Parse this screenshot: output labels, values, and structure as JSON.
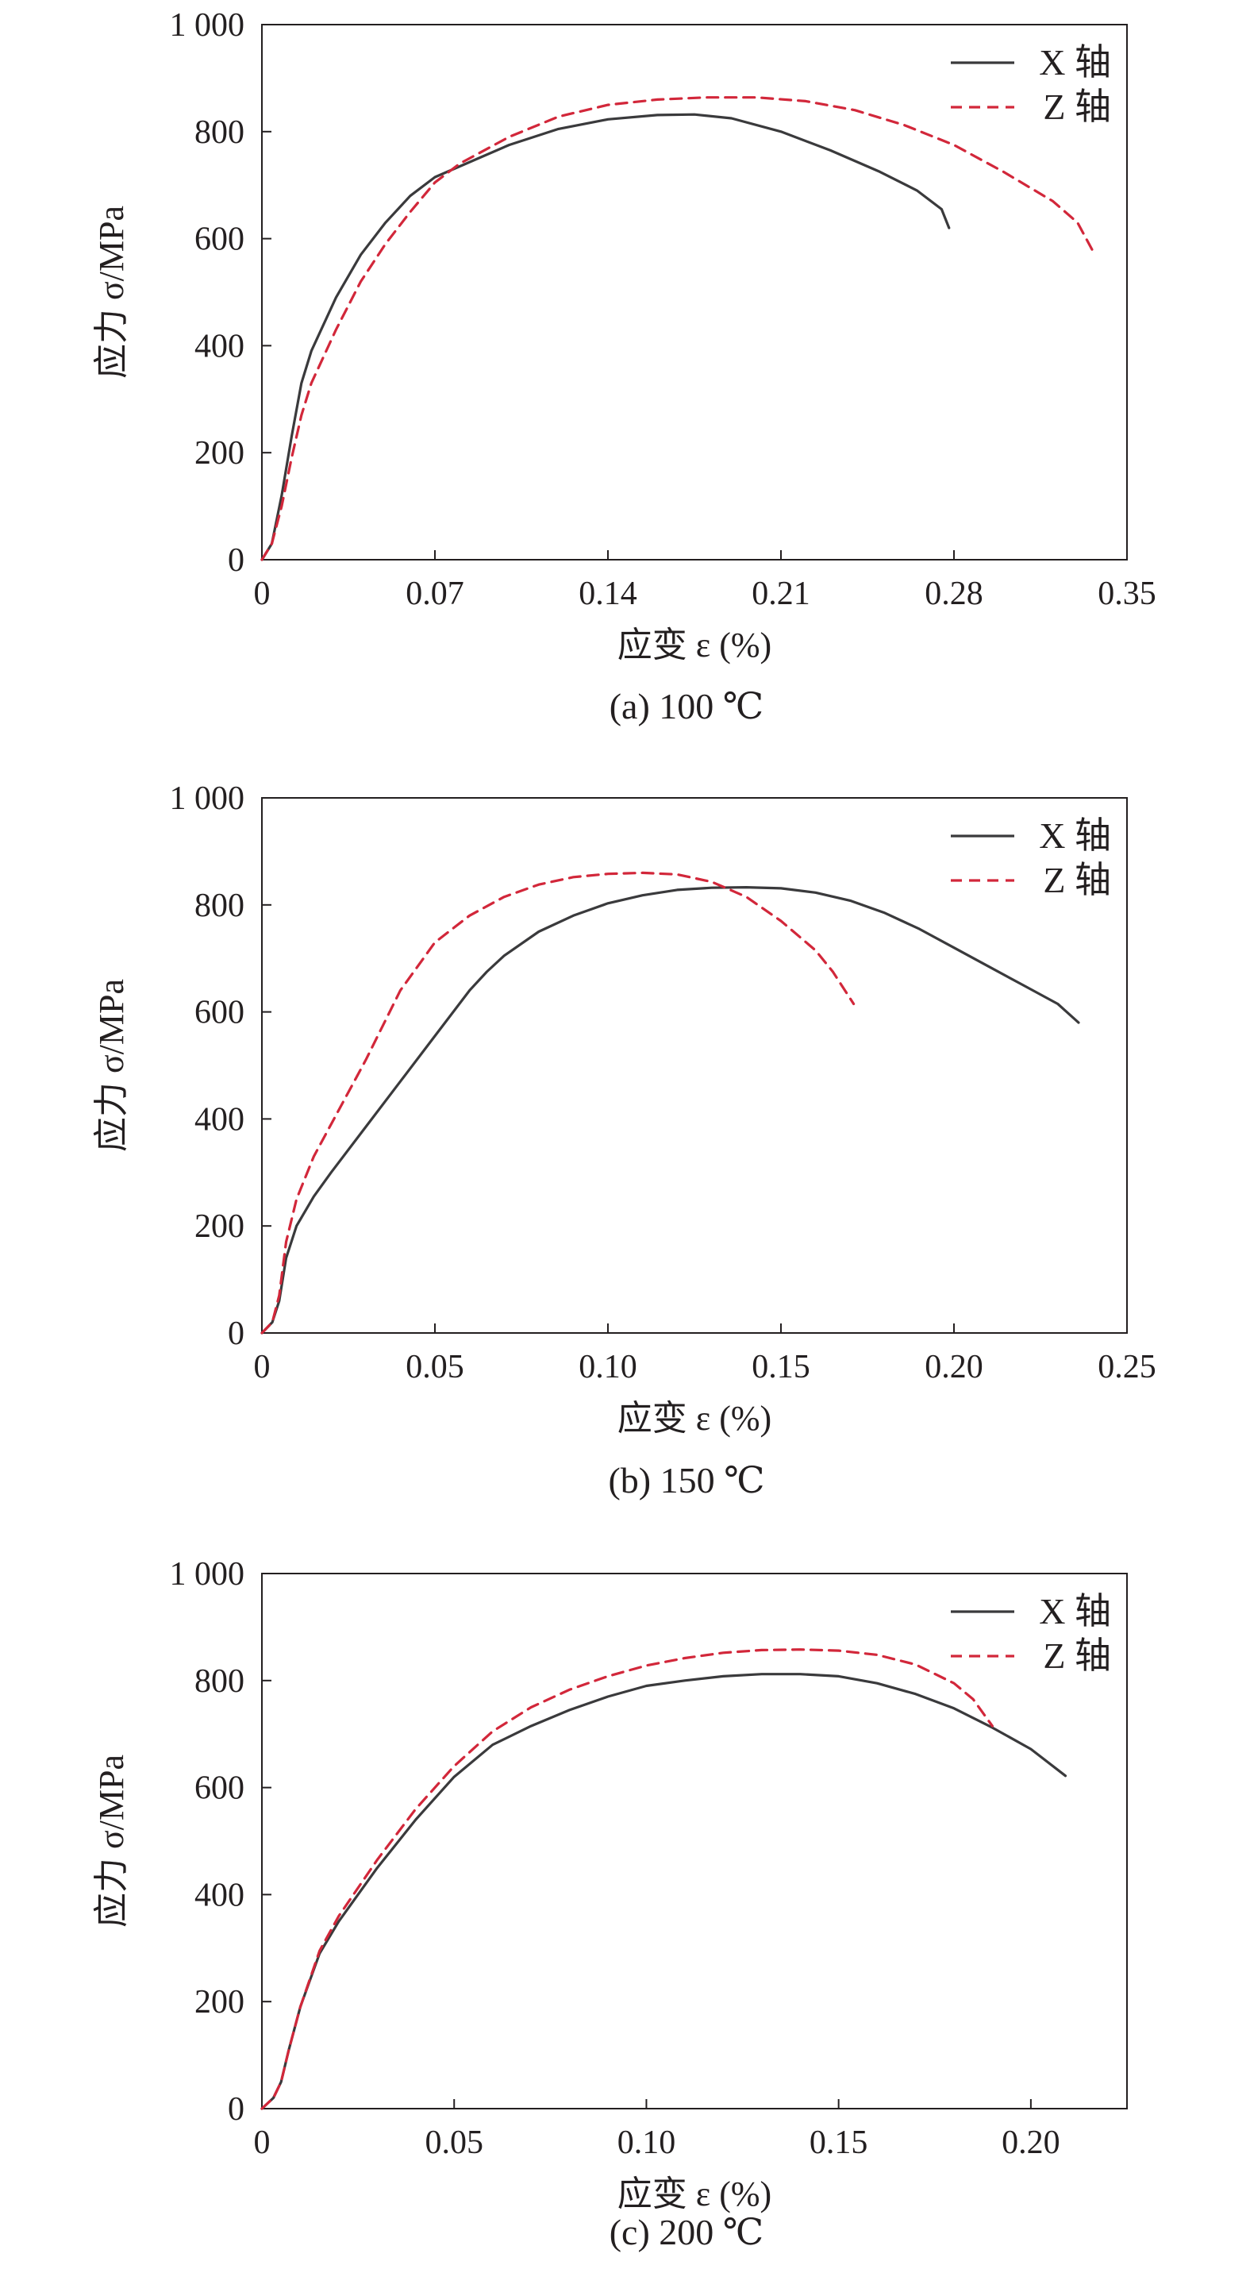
{
  "figure": {
    "panels_label": "stress-strain curves"
  },
  "colors": {
    "x_axis_series": "#3a3a3c",
    "z_axis_series": "#d2273a",
    "frame": "#231f20"
  },
  "chart_data": [
    {
      "type": "line",
      "caption": "(a) 100 ℃",
      "xlabel": "应变 ε (%)",
      "ylabel": "应力 σ/MPa",
      "xlim": [
        0,
        0.35
      ],
      "ylim": [
        0,
        1000
      ],
      "xticks": [
        "0",
        "0.07",
        "0.14",
        "0.21",
        "0.28",
        "0.35"
      ],
      "xtick_values": [
        0,
        0.07,
        0.14,
        0.21,
        0.28,
        0.35
      ],
      "yticks": [
        "0",
        "200",
        "400",
        "600",
        "800",
        "1 000"
      ],
      "ytick_values": [
        0,
        200,
        400,
        600,
        800,
        1000
      ],
      "legend": "top-right",
      "grid": false,
      "series": [
        {
          "name": "X 轴",
          "style": "solid",
          "points": [
            [
              0,
              0
            ],
            [
              0.004,
              30
            ],
            [
              0.008,
              120
            ],
            [
              0.012,
              230
            ],
            [
              0.016,
              330
            ],
            [
              0.02,
              390
            ],
            [
              0.03,
              490
            ],
            [
              0.04,
              570
            ],
            [
              0.05,
              630
            ],
            [
              0.06,
              680
            ],
            [
              0.07,
              715
            ],
            [
              0.085,
              745
            ],
            [
              0.1,
              775
            ],
            [
              0.12,
              805
            ],
            [
              0.14,
              823
            ],
            [
              0.16,
              831
            ],
            [
              0.175,
              832
            ],
            [
              0.19,
              825
            ],
            [
              0.21,
              800
            ],
            [
              0.23,
              765
            ],
            [
              0.25,
              725
            ],
            [
              0.265,
              690
            ],
            [
              0.275,
              655
            ],
            [
              0.278,
              620
            ]
          ]
        },
        {
          "name": "Z 轴",
          "style": "dashed",
          "points": [
            [
              0,
              0
            ],
            [
              0.004,
              30
            ],
            [
              0.008,
              100
            ],
            [
              0.012,
              190
            ],
            [
              0.016,
              270
            ],
            [
              0.02,
              330
            ],
            [
              0.03,
              430
            ],
            [
              0.04,
              520
            ],
            [
              0.05,
              590
            ],
            [
              0.06,
              650
            ],
            [
              0.07,
              705
            ],
            [
              0.08,
              740
            ],
            [
              0.1,
              790
            ],
            [
              0.12,
              828
            ],
            [
              0.14,
              850
            ],
            [
              0.16,
              860
            ],
            [
              0.18,
              864
            ],
            [
              0.2,
              864
            ],
            [
              0.22,
              857
            ],
            [
              0.24,
              840
            ],
            [
              0.26,
              812
            ],
            [
              0.28,
              775
            ],
            [
              0.3,
              725
            ],
            [
              0.32,
              670
            ],
            [
              0.33,
              630
            ],
            [
              0.337,
              570
            ]
          ]
        }
      ]
    },
    {
      "type": "line",
      "caption": "(b) 150 ℃",
      "xlabel": "应变 ε (%)",
      "ylabel": "应力 σ/MPa",
      "xlim": [
        0,
        0.25
      ],
      "ylim": [
        0,
        1000
      ],
      "xticks": [
        "0",
        "0.05",
        "0.10",
        "0.15",
        "0.20",
        "0.25"
      ],
      "xtick_values": [
        0,
        0.05,
        0.1,
        0.15,
        0.2,
        0.25
      ],
      "yticks": [
        "0",
        "200",
        "400",
        "600",
        "800",
        "1 000"
      ],
      "ytick_values": [
        0,
        200,
        400,
        600,
        800,
        1000
      ],
      "legend": "top-right",
      "grid": false,
      "series": [
        {
          "name": "X 轴",
          "style": "solid",
          "points": [
            [
              0,
              0
            ],
            [
              0.003,
              20
            ],
            [
              0.005,
              60
            ],
            [
              0.007,
              140
            ],
            [
              0.01,
              200
            ],
            [
              0.015,
              255
            ],
            [
              0.02,
              300
            ],
            [
              0.03,
              385
            ],
            [
              0.04,
              470
            ],
            [
              0.05,
              555
            ],
            [
              0.06,
              640
            ],
            [
              0.065,
              675
            ],
            [
              0.07,
              705
            ],
            [
              0.08,
              750
            ],
            [
              0.09,
              780
            ],
            [
              0.1,
              803
            ],
            [
              0.11,
              818
            ],
            [
              0.12,
              828
            ],
            [
              0.13,
              832
            ],
            [
              0.14,
              833
            ],
            [
              0.15,
              831
            ],
            [
              0.16,
              823
            ],
            [
              0.17,
              808
            ],
            [
              0.18,
              785
            ],
            [
              0.19,
              755
            ],
            [
              0.2,
              720
            ],
            [
              0.21,
              685
            ],
            [
              0.22,
              650
            ],
            [
              0.23,
              615
            ],
            [
              0.236,
              580
            ]
          ]
        },
        {
          "name": "Z 轴",
          "style": "dashed",
          "points": [
            [
              0,
              0
            ],
            [
              0.003,
              20
            ],
            [
              0.005,
              70
            ],
            [
              0.007,
              170
            ],
            [
              0.01,
              250
            ],
            [
              0.015,
              330
            ],
            [
              0.02,
              390
            ],
            [
              0.03,
              510
            ],
            [
              0.04,
              640
            ],
            [
              0.05,
              730
            ],
            [
              0.06,
              780
            ],
            [
              0.07,
              815
            ],
            [
              0.08,
              838
            ],
            [
              0.09,
              852
            ],
            [
              0.1,
              858
            ],
            [
              0.11,
              860
            ],
            [
              0.12,
              857
            ],
            [
              0.13,
              843
            ],
            [
              0.14,
              815
            ],
            [
              0.15,
              770
            ],
            [
              0.16,
              715
            ],
            [
              0.165,
              675
            ],
            [
              0.171,
              615
            ]
          ]
        }
      ]
    },
    {
      "type": "line",
      "caption": "(c) 200 ℃",
      "xlabel": "应变 ε (%)",
      "ylabel": "应力 σ/MPa",
      "xlim": [
        0,
        0.225
      ],
      "ylim": [
        0,
        1000
      ],
      "xticks": [
        "0",
        "0.05",
        "0.10",
        "0.15",
        "0.20"
      ],
      "xtick_values": [
        0,
        0.05,
        0.1,
        0.15,
        0.2
      ],
      "yticks": [
        "0",
        "200",
        "400",
        "600",
        "800",
        "1 000"
      ],
      "ytick_values": [
        0,
        200,
        400,
        600,
        800,
        1000
      ],
      "legend": "top-right",
      "grid": false,
      "series": [
        {
          "name": "X 轴",
          "style": "solid",
          "points": [
            [
              0,
              0
            ],
            [
              0.003,
              20
            ],
            [
              0.005,
              50
            ],
            [
              0.007,
              110
            ],
            [
              0.01,
              190
            ],
            [
              0.015,
              290
            ],
            [
              0.02,
              350
            ],
            [
              0.03,
              450
            ],
            [
              0.04,
              540
            ],
            [
              0.05,
              620
            ],
            [
              0.06,
              680
            ],
            [
              0.07,
              715
            ],
            [
              0.08,
              745
            ],
            [
              0.09,
              770
            ],
            [
              0.1,
              790
            ],
            [
              0.11,
              800
            ],
            [
              0.12,
              808
            ],
            [
              0.13,
              812
            ],
            [
              0.14,
              812
            ],
            [
              0.15,
              808
            ],
            [
              0.16,
              795
            ],
            [
              0.17,
              775
            ],
            [
              0.18,
              748
            ],
            [
              0.19,
              712
            ],
            [
              0.2,
              672
            ],
            [
              0.209,
              622
            ]
          ]
        },
        {
          "name": "Z 轴",
          "style": "dashed",
          "points": [
            [
              0,
              0
            ],
            [
              0.003,
              20
            ],
            [
              0.005,
              50
            ],
            [
              0.007,
              110
            ],
            [
              0.01,
              190
            ],
            [
              0.015,
              295
            ],
            [
              0.02,
              360
            ],
            [
              0.03,
              465
            ],
            [
              0.04,
              560
            ],
            [
              0.05,
              640
            ],
            [
              0.06,
              705
            ],
            [
              0.07,
              750
            ],
            [
              0.08,
              783
            ],
            [
              0.09,
              808
            ],
            [
              0.1,
              828
            ],
            [
              0.11,
              842
            ],
            [
              0.12,
              852
            ],
            [
              0.13,
              857
            ],
            [
              0.14,
              858
            ],
            [
              0.15,
              856
            ],
            [
              0.16,
              848
            ],
            [
              0.17,
              830
            ],
            [
              0.18,
              795
            ],
            [
              0.185,
              765
            ],
            [
              0.19,
              715
            ]
          ]
        }
      ]
    }
  ]
}
